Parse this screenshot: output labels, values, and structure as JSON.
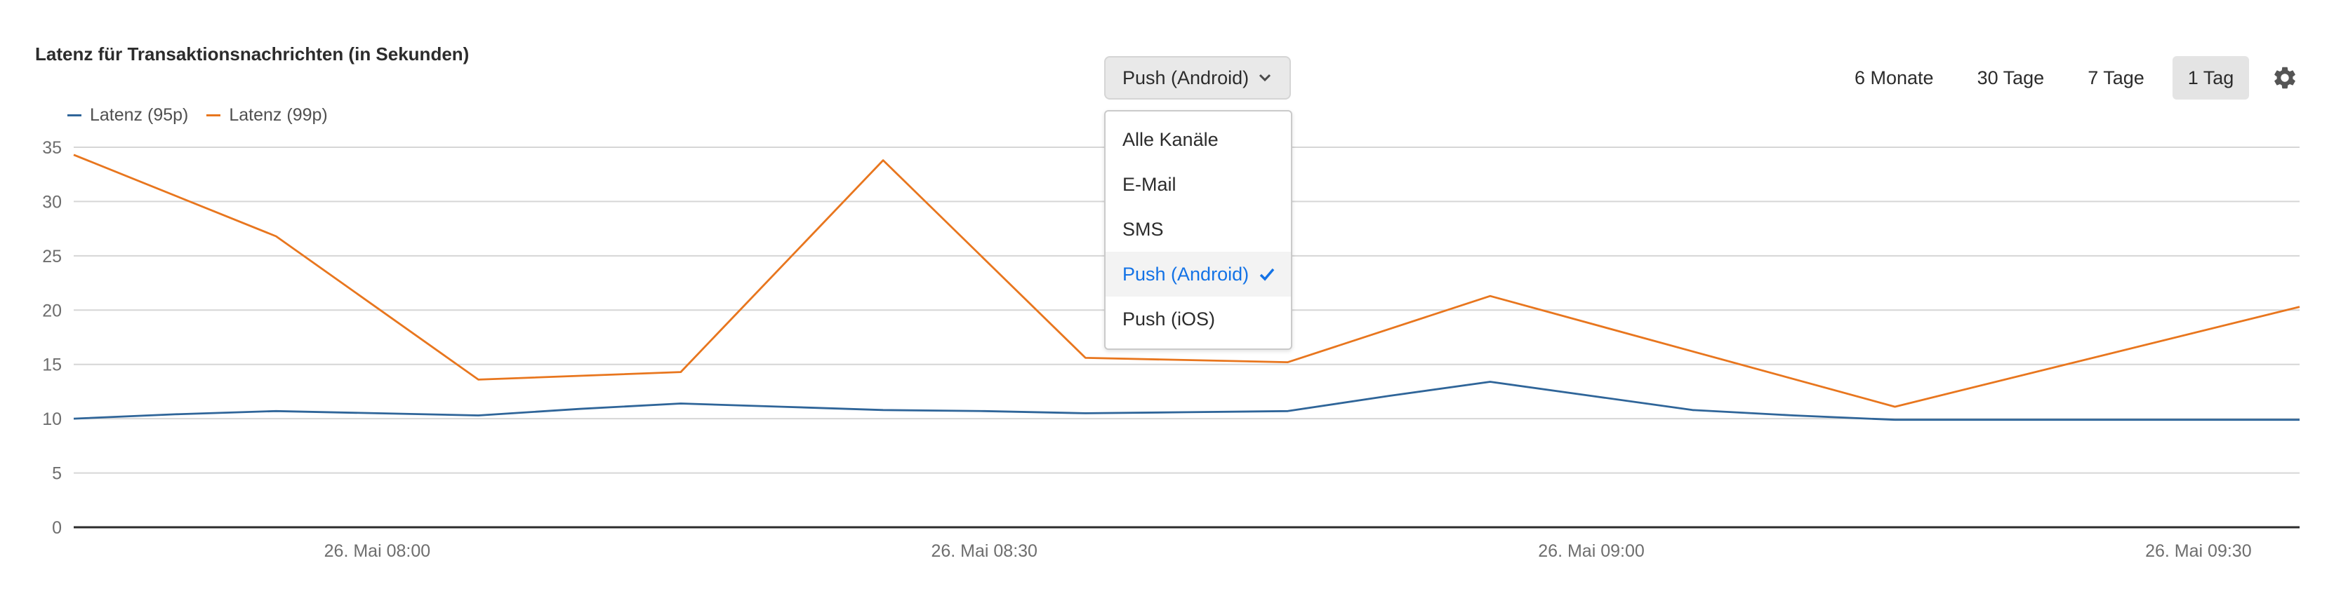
{
  "widget": {
    "title": "Latenz für Transaktionsnachrichten (in Sekunden)"
  },
  "channel_select": {
    "value": "Push (Android)",
    "options": [
      {
        "label": "Alle Kanäle",
        "selected": false
      },
      {
        "label": "E-Mail",
        "selected": false
      },
      {
        "label": "SMS",
        "selected": false
      },
      {
        "label": "Push (Android)",
        "selected": true
      },
      {
        "label": "Push (iOS)",
        "selected": false
      }
    ]
  },
  "ranges": [
    {
      "label": "6 Monate",
      "active": false
    },
    {
      "label": "30 Tage",
      "active": false
    },
    {
      "label": "7 Tage",
      "active": false
    },
    {
      "label": "1 Tag",
      "active": true
    }
  ],
  "icons": {
    "settings": "gear-icon",
    "dropdown": "chevron-down-icon",
    "selected": "checkmark-icon"
  },
  "chart_data": {
    "type": "line",
    "title": "Latenz für Transaktionsnachrichten (in Sekunden)",
    "xlabel": "",
    "ylabel": "",
    "x": [
      "07:45",
      "07:50",
      "07:55",
      "08:00",
      "08:05",
      "08:10",
      "08:15",
      "08:20",
      "08:25",
      "08:30",
      "08:35",
      "08:40",
      "08:45",
      "08:50",
      "08:55",
      "09:00",
      "09:05",
      "09:10",
      "09:15",
      "09:20",
      "09:25",
      "09:30",
      "09:35"
    ],
    "x_ticks": [
      "26. Mai 08:00",
      "26. Mai 08:30",
      "26. Mai 09:00",
      "26. Mai 09:30"
    ],
    "series": [
      {
        "name": "Latenz (95p)",
        "color": "#2f6599",
        "values": [
          10.0,
          10.4,
          10.7,
          10.5,
          10.3,
          10.9,
          11.4,
          11.1,
          10.8,
          10.7,
          10.5,
          10.6,
          10.7,
          12.1,
          13.4,
          12.1,
          10.8,
          10.3,
          9.9,
          9.9,
          9.9,
          9.9,
          9.9
        ]
      },
      {
        "name": "Latenz (99p)",
        "color": "#e8761e",
        "values": [
          34.3,
          null,
          26.8,
          null,
          13.6,
          null,
          14.3,
          null,
          33.8,
          null,
          15.6,
          null,
          15.2,
          null,
          21.3,
          null,
          null,
          null,
          11.1,
          null,
          null,
          null,
          20.3
        ]
      }
    ],
    "ylim": [
      0,
      35
    ],
    "yticks": [
      0,
      5,
      10,
      15,
      20,
      25,
      30,
      35
    ],
    "grid": true,
    "legend": "top-left"
  }
}
